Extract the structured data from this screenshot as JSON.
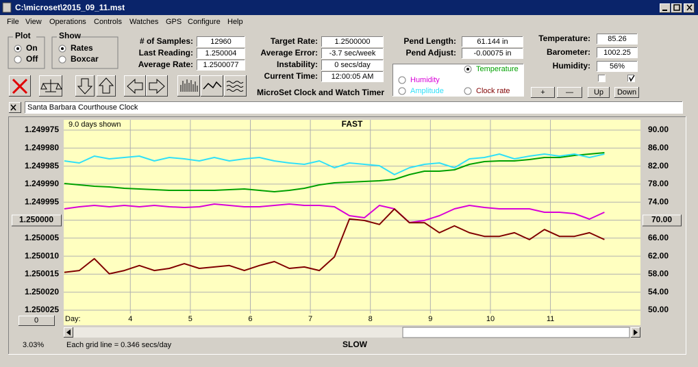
{
  "window": {
    "title": "C:\\microset\\2015_09_11.mst"
  },
  "menu": [
    "File",
    "View",
    "Operations",
    "Controls",
    "Watches",
    "GPS",
    "Configure",
    "Help"
  ],
  "plot_group": {
    "title": "Plot",
    "options": [
      "On",
      "Off"
    ]
  },
  "show_group": {
    "title": "Show",
    "options": [
      "Rates",
      "Boxcar"
    ]
  },
  "fields": [
    {
      "label": "# of Samples:",
      "value": "12960"
    },
    {
      "label": "Last Reading:",
      "value": "1.250004"
    },
    {
      "label": "Average Rate:",
      "value": "1.2500077"
    },
    {
      "label": "Target Rate:",
      "value": "1.2500000"
    },
    {
      "label": "Average Error:",
      "value": "-3.7 sec/week"
    },
    {
      "label": "Instability:",
      "value": "0 secs/day"
    },
    {
      "label": "Current Time:",
      "value": "12:00:05 AM"
    },
    {
      "label": "Pend Length:",
      "value": "61.144 in"
    },
    {
      "label": "Pend Adjust:",
      "value": "-0.00075 in"
    },
    {
      "label": "Temperature:",
      "value": "85.26"
    },
    {
      "label": "Barometer:",
      "value": "1002.25"
    },
    {
      "label": "Humidity:",
      "value": "56%"
    }
  ],
  "app_title": "MicroSet Clock and Watch Timer",
  "buttons": [
    "+",
    "—",
    "Up",
    "Down"
  ],
  "clock_name": "Santa Barbara Courthouse Clock",
  "chart_data": {
    "type": "line",
    "top_label": "FAST",
    "bottom_label": "SLOW",
    "span_note": "9.0 days shown",
    "grid_note": "Each grid line = 0.346 secs/day",
    "zoom": "3.03%",
    "offset": "0",
    "x_label": "Day:",
    "grid": true,
    "background": "#ffffc0",
    "x": [
      2.9,
      3.15,
      3.4,
      3.65,
      3.9,
      4.15,
      4.4,
      4.65,
      4.9,
      5.15,
      5.4,
      5.65,
      5.9,
      6.15,
      6.4,
      6.65,
      6.9,
      7.15,
      7.4,
      7.65,
      7.9,
      8.15,
      8.4,
      8.65,
      8.9,
      9.15,
      9.4,
      9.65,
      9.9,
      10.15,
      10.4,
      10.65,
      10.9,
      11.15,
      11.4,
      11.65,
      11.9
    ],
    "xlim": [
      2.89,
      12.5
    ],
    "xticks": [
      4,
      5,
      6,
      7,
      8,
      9,
      10,
      11
    ],
    "ylim": [
      1.250025,
      1.249975
    ],
    "yticks": [
      1.249975,
      {
        "value": 1.24998,
        "label": "1.249980"
      },
      1.249985,
      {
        "value": 1.24999,
        "label": "1.249990"
      },
      1.249995,
      {
        "value": 1.25,
        "label": "1.250000"
      },
      1.250005,
      {
        "value": 1.25001,
        "label": "1.250010"
      },
      1.250015,
      {
        "value": 1.25002,
        "label": "1.250020"
      },
      1.250025
    ],
    "y2lim": [
      50,
      90
    ],
    "y2ticks": [
      {
        "value": 90,
        "label": "90.00"
      },
      {
        "value": 86,
        "label": "86.00"
      },
      {
        "value": 82,
        "label": "82.00"
      },
      {
        "value": 78,
        "label": "78.00"
      },
      {
        "value": 74,
        "label": "74.00"
      },
      {
        "value": 70,
        "label": "70.00"
      },
      {
        "value": 66,
        "label": "66.00"
      },
      {
        "value": 62,
        "label": "62.00"
      },
      {
        "value": 58,
        "label": "58.00"
      },
      {
        "value": 54,
        "label": "54.00"
      },
      {
        "value": 50,
        "label": "50.00"
      }
    ],
    "series": [
      {
        "name": "Temperature",
        "color": "#00a000",
        "axis": "y2",
        "values": [
          78.14,
          77.83,
          77.53,
          77.38,
          77.07,
          76.92,
          76.77,
          76.62,
          76.62,
          76.62,
          76.62,
          76.77,
          76.92,
          76.62,
          76.31,
          76.62,
          77.07,
          77.83,
          78.29,
          78.44,
          78.59,
          78.74,
          79.05,
          80.11,
          80.87,
          80.87,
          81.18,
          82.39,
          83.0,
          83.16,
          83.16,
          83.46,
          83.92,
          83.92,
          84.37,
          84.68,
          84.98
        ]
      },
      {
        "name": "Humidity",
        "color": "#d800d8",
        "axis": "y2",
        "values": [
          72.51,
          72.96,
          73.27,
          72.96,
          73.27,
          72.96,
          73.27,
          72.96,
          72.81,
          72.96,
          73.57,
          73.27,
          72.96,
          72.96,
          73.27,
          73.57,
          73.27,
          73.27,
          72.96,
          70.99,
          70.53,
          73.27,
          72.51,
          69.47,
          69.92,
          70.99,
          72.51,
          73.27,
          72.81,
          72.51,
          72.51,
          72.51,
          71.75,
          71.75,
          71.44,
          70.23,
          71.75
        ]
      },
      {
        "name": "Amplitude",
        "color": "#30e0f8",
        "axis": "y2",
        "values": [
          83.16,
          82.7,
          84.22,
          83.61,
          83.92,
          84.22,
          83.16,
          83.92,
          83.61,
          83.16,
          83.92,
          83.16,
          83.61,
          83.92,
          83.16,
          82.7,
          82.39,
          83.16,
          81.63,
          82.7,
          82.39,
          82.09,
          80.11,
          81.63,
          82.39,
          82.7,
          81.63,
          83.61,
          83.92,
          84.68,
          83.61,
          84.22,
          84.68,
          84.22,
          84.68,
          83.92,
          84.68
        ]
      },
      {
        "name": "Clock rate",
        "color": "#800000",
        "values": [
          1.2500145,
          1.250014,
          1.2500107,
          1.2500149,
          1.250014,
          1.2500126,
          1.250014,
          1.2500134,
          1.2500121,
          1.2500134,
          1.250013,
          1.2500126,
          1.250014,
          1.2500126,
          1.2500115,
          1.2500134,
          1.250013,
          1.250014,
          1.2500102,
          1.2499997,
          1.2500001,
          1.2500012,
          1.2499969,
          1.2500007,
          1.2500007,
          1.2500035,
          1.2500016,
          1.2500035,
          1.2500045,
          1.2500045,
          1.2500035,
          1.2500054,
          1.2500026,
          1.2500045,
          1.2500045,
          1.2500035,
          1.2500054
        ]
      }
    ]
  }
}
